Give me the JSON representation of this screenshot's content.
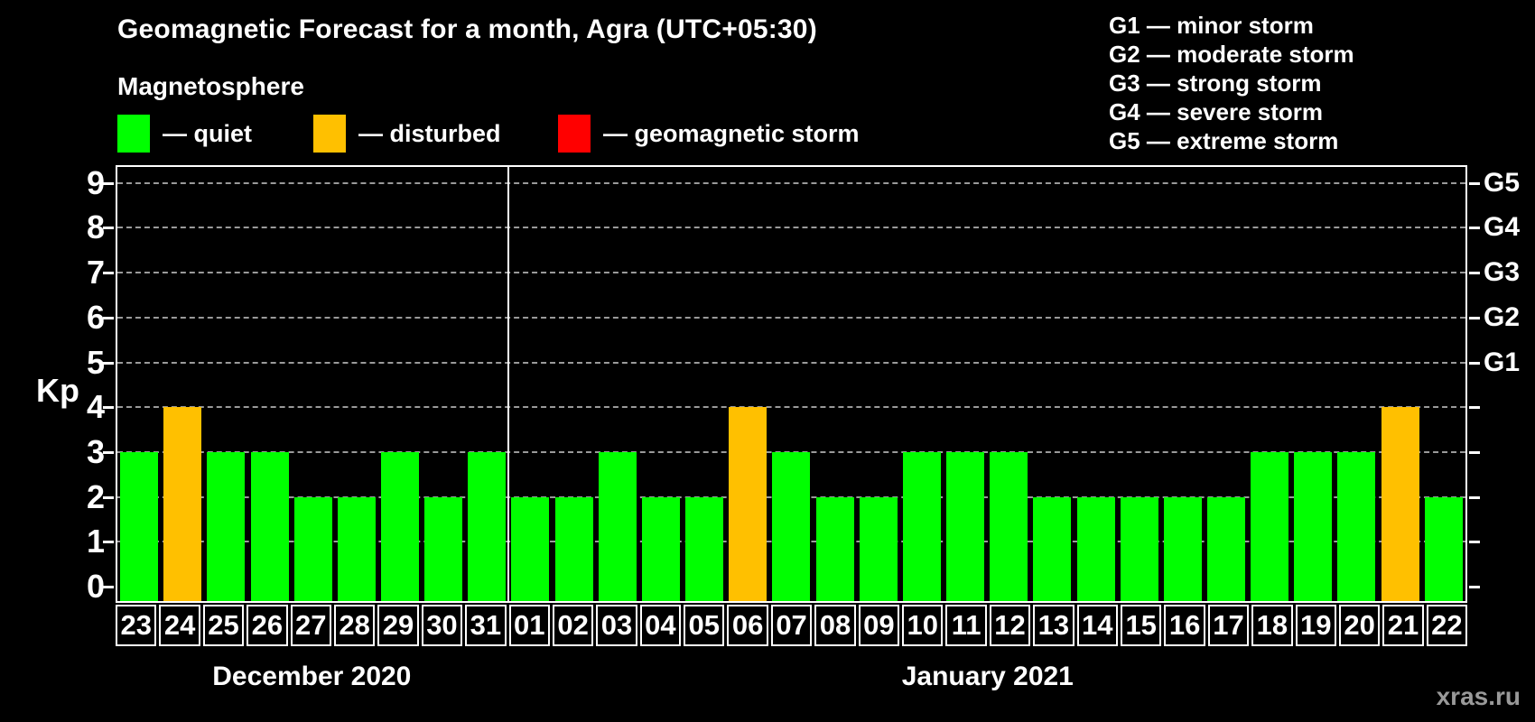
{
  "title": "Geomagnetic Forecast for a month, Agra (UTC+05:30)",
  "subtitle": "Magnetosphere",
  "legend": {
    "items": [
      {
        "label": "— quiet",
        "status": "quiet",
        "color": "#00ff00"
      },
      {
        "label": "— disturbed",
        "status": "disturbed",
        "color": "#ffc000"
      },
      {
        "label": "— geomagnetic storm",
        "status": "storm",
        "color": "#ff0000"
      }
    ]
  },
  "storm_scale_legend": [
    "G1 — minor storm",
    "G2 — moderate storm",
    "G3 — strong storm",
    "G4 — severe storm",
    "G5 — extreme storm"
  ],
  "watermark": "xras.ru",
  "chart_data": {
    "type": "bar",
    "title": "Geomagnetic Forecast for a month, Agra (UTC+05:30)",
    "ylabel": "Kp",
    "ylim": [
      0,
      9
    ],
    "yticks": [
      0,
      1,
      2,
      3,
      4,
      5,
      6,
      7,
      8,
      9
    ],
    "grid": "horizontal dashed at each Kp integer",
    "right_axis_labels": [
      {
        "kp": 5,
        "label": "G1"
      },
      {
        "kp": 6,
        "label": "G2"
      },
      {
        "kp": 7,
        "label": "G3"
      },
      {
        "kp": 8,
        "label": "G4"
      },
      {
        "kp": 9,
        "label": "G5"
      }
    ],
    "status_colors": {
      "quiet": "#00ff00",
      "disturbed": "#ffc000",
      "storm": "#ff0000"
    },
    "months": [
      {
        "label": "December 2020",
        "days": [
          "23",
          "24",
          "25",
          "26",
          "27",
          "28",
          "29",
          "30",
          "31"
        ],
        "values": [
          3,
          4,
          3,
          3,
          2,
          2,
          3,
          2,
          3
        ],
        "statuses": [
          "quiet",
          "disturbed",
          "quiet",
          "quiet",
          "quiet",
          "quiet",
          "quiet",
          "quiet",
          "quiet"
        ]
      },
      {
        "label": "January 2021",
        "days": [
          "01",
          "02",
          "03",
          "04",
          "05",
          "06",
          "07",
          "08",
          "09",
          "10",
          "11",
          "12",
          "13",
          "14",
          "15",
          "16",
          "17",
          "18",
          "19",
          "20",
          "21",
          "22"
        ],
        "values": [
          2,
          2,
          3,
          2,
          2,
          4,
          3,
          2,
          2,
          3,
          3,
          3,
          2,
          2,
          2,
          2,
          2,
          3,
          3,
          3,
          4,
          2
        ],
        "statuses": [
          "quiet",
          "quiet",
          "quiet",
          "quiet",
          "quiet",
          "disturbed",
          "quiet",
          "quiet",
          "quiet",
          "quiet",
          "quiet",
          "quiet",
          "quiet",
          "quiet",
          "quiet",
          "quiet",
          "quiet",
          "quiet",
          "quiet",
          "quiet",
          "disturbed",
          "quiet"
        ]
      }
    ]
  }
}
